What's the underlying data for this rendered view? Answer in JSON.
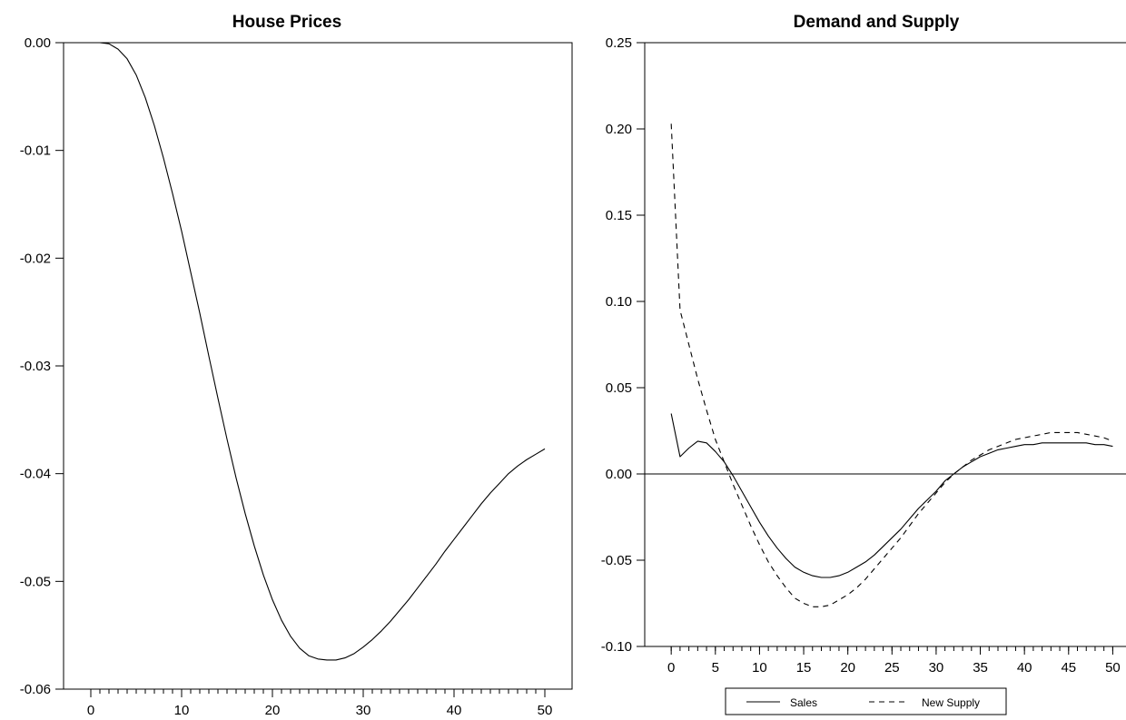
{
  "chart_data": [
    {
      "type": "line",
      "title": "House Prices",
      "xlabel": "",
      "ylabel": "",
      "xlim": [
        -3,
        53
      ],
      "ylim": [
        -0.06,
        0.0
      ],
      "xticks": [
        0,
        10,
        20,
        30,
        40,
        50
      ],
      "xtick_labels": [
        "0",
        "10",
        "20",
        "30",
        "40",
        "50"
      ],
      "yticks": [
        0.0,
        -0.01,
        -0.02,
        -0.03,
        -0.04,
        -0.05,
        -0.06
      ],
      "ytick_labels": [
        "0.00",
        "-0.01",
        "-0.02",
        "-0.03",
        "-0.04",
        "-0.05",
        "-0.06"
      ],
      "zero_line": false,
      "grid": false,
      "series": [
        {
          "style": "solid",
          "x": [
            0,
            1,
            2,
            3,
            4,
            5,
            6,
            7,
            8,
            9,
            10,
            11,
            12,
            13,
            14,
            15,
            16,
            17,
            18,
            19,
            20,
            21,
            22,
            23,
            24,
            25,
            26,
            27,
            28,
            29,
            30,
            31,
            32,
            33,
            34,
            35,
            36,
            37,
            38,
            39,
            40,
            41,
            42,
            43,
            44,
            45,
            46,
            47,
            48,
            49,
            50
          ],
          "values": [
            0.0,
            0.0,
            -0.0001,
            -0.0006,
            -0.0015,
            -0.003,
            -0.0051,
            -0.0077,
            -0.0107,
            -0.014,
            -0.0175,
            -0.0213,
            -0.0251,
            -0.0291,
            -0.033,
            -0.0368,
            -0.0404,
            -0.0437,
            -0.0467,
            -0.0494,
            -0.0517,
            -0.0536,
            -0.0551,
            -0.0562,
            -0.0569,
            -0.0572,
            -0.0573,
            -0.0573,
            -0.0571,
            -0.0567,
            -0.0561,
            -0.0554,
            -0.0546,
            -0.0537,
            -0.0527,
            -0.0517,
            -0.0506,
            -0.0495,
            -0.0484,
            -0.0472,
            -0.0461,
            -0.045,
            -0.0439,
            -0.0428,
            -0.0418,
            -0.0409,
            -0.04,
            -0.0393,
            -0.0387,
            -0.0382,
            -0.0377
          ]
        }
      ]
    },
    {
      "type": "line",
      "title": "Demand and Supply",
      "xlabel": "",
      "ylabel": "",
      "xlim": [
        -3,
        51.5
      ],
      "ylim": [
        -0.1,
        0.25
      ],
      "xticks": [
        0,
        5,
        10,
        15,
        20,
        25,
        30,
        35,
        40,
        45,
        50
      ],
      "xtick_labels": [
        "0",
        "5",
        "10",
        "15",
        "20",
        "25",
        "30",
        "35",
        "40",
        "45",
        "50"
      ],
      "yticks": [
        0.25,
        0.2,
        0.15,
        0.1,
        0.05,
        0.0,
        -0.05,
        -0.1
      ],
      "ytick_labels": [
        "0.25",
        "0.20",
        "0.15",
        "0.10",
        "0.05",
        "0.00",
        "-0.05",
        "-0.10"
      ],
      "zero_line": true,
      "grid": false,
      "legend_position": "bottom",
      "series": [
        {
          "name": "Sales",
          "style": "solid",
          "x": [
            0,
            1,
            2,
            3,
            4,
            5,
            6,
            7,
            8,
            9,
            10,
            11,
            12,
            13,
            14,
            15,
            16,
            17,
            18,
            19,
            20,
            21,
            22,
            23,
            24,
            25,
            26,
            27,
            28,
            29,
            30,
            31,
            32,
            33,
            34,
            35,
            36,
            37,
            38,
            39,
            40,
            41,
            42,
            43,
            44,
            45,
            46,
            47,
            48,
            49,
            50
          ],
          "values": [
            0.035,
            0.01,
            0.015,
            0.019,
            0.018,
            0.013,
            0.007,
            -0.001,
            -0.01,
            -0.019,
            -0.028,
            -0.036,
            -0.043,
            -0.049,
            -0.054,
            -0.057,
            -0.059,
            -0.06,
            -0.06,
            -0.059,
            -0.057,
            -0.054,
            -0.051,
            -0.047,
            -0.042,
            -0.037,
            -0.032,
            -0.026,
            -0.02,
            -0.015,
            -0.01,
            -0.004,
            0.0,
            0.004,
            0.007,
            0.01,
            0.012,
            0.014,
            0.015,
            0.016,
            0.017,
            0.017,
            0.018,
            0.018,
            0.018,
            0.018,
            0.018,
            0.018,
            0.017,
            0.017,
            0.016
          ]
        },
        {
          "name": "New Supply",
          "style": "dashed",
          "x": [
            0,
            1,
            2,
            3,
            4,
            5,
            6,
            7,
            8,
            9,
            10,
            11,
            12,
            13,
            14,
            15,
            16,
            17,
            18,
            19,
            20,
            21,
            22,
            23,
            24,
            25,
            26,
            27,
            28,
            29,
            30,
            31,
            32,
            33,
            34,
            35,
            36,
            37,
            38,
            39,
            40,
            41,
            42,
            43,
            44,
            45,
            46,
            47,
            48,
            49,
            50
          ],
          "values": [
            0.203,
            0.095,
            0.075,
            0.055,
            0.037,
            0.02,
            0.007,
            -0.006,
            -0.018,
            -0.03,
            -0.041,
            -0.051,
            -0.059,
            -0.066,
            -0.072,
            -0.075,
            -0.077,
            -0.077,
            -0.076,
            -0.073,
            -0.07,
            -0.066,
            -0.061,
            -0.055,
            -0.049,
            -0.043,
            -0.037,
            -0.03,
            -0.023,
            -0.017,
            -0.011,
            -0.005,
            0.0,
            0.004,
            0.008,
            0.011,
            0.014,
            0.016,
            0.018,
            0.02,
            0.021,
            0.022,
            0.023,
            0.024,
            0.024,
            0.024,
            0.024,
            0.023,
            0.022,
            0.021,
            0.019
          ]
        }
      ]
    }
  ],
  "legend": {
    "items": [
      {
        "label": "Sales",
        "style": "solid"
      },
      {
        "label": "New Supply",
        "style": "dashed"
      }
    ]
  }
}
